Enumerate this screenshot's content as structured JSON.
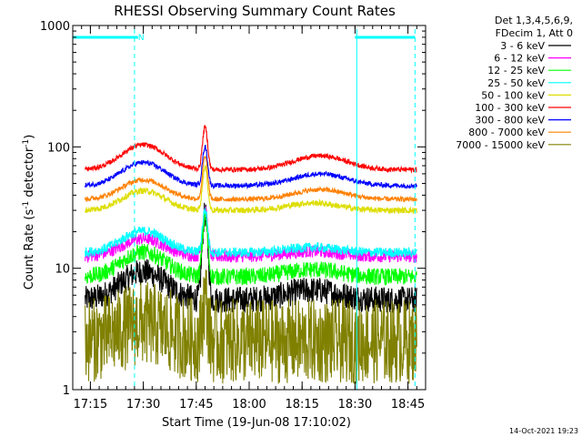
{
  "chart_data": {
    "type": "line",
    "title": "RHESSI Observing Summary Count Rates",
    "xlabel": "Start Time (19-Jun-08 17:10:02)",
    "ylabel_main": "Count Rate (s",
    "ylabel_sup1": "-1",
    "ylabel_mid": " detector",
    "ylabel_sup2": "-1",
    "ylabel_end": ")",
    "yscale": "log",
    "ylim": [
      1,
      1000
    ],
    "xlim_minutes": [
      0,
      100
    ],
    "x_ticks": [
      {
        "minute": 5,
        "label": "17:15"
      },
      {
        "minute": 20,
        "label": "17:30"
      },
      {
        "minute": 35,
        "label": "17:45"
      },
      {
        "minute": 50,
        "label": "18:00"
      },
      {
        "minute": 65,
        "label": "18:15"
      },
      {
        "minute": 80,
        "label": "18:30"
      },
      {
        "minute": 95,
        "label": "18:45"
      }
    ],
    "y_ticks": [
      {
        "value": 1,
        "label": "1"
      },
      {
        "value": 10,
        "label": "10"
      },
      {
        "value": 100,
        "label": "100"
      },
      {
        "value": 1000,
        "label": "1000"
      }
    ],
    "legend": {
      "placement": "top-right",
      "header1": "Det 1,3,4,5,6,9,",
      "header2": "FDecim 1, Att 0"
    },
    "series": [
      {
        "name": "3 - 6 keV",
        "color": "#000000",
        "peak": 28,
        "base": 5.5,
        "bumps": [
          [
            20,
            8,
            1.7
          ],
          [
            68,
            10,
            1.2
          ]
        ],
        "noise": 0.11
      },
      {
        "name": "6 - 12 keV",
        "color": "#ff00ff",
        "peak": 30,
        "base": 12.5,
        "bumps": [
          [
            20,
            8,
            1.4
          ],
          [
            68,
            10,
            1.1
          ]
        ],
        "noise": 0.05
      },
      {
        "name": "12 - 25 keV",
        "color": "#00ff00",
        "peak": 26,
        "base": 8.5,
        "bumps": [
          [
            20,
            8,
            1.6
          ],
          [
            68,
            10,
            1.15
          ]
        ],
        "noise": 0.07
      },
      {
        "name": "25 - 50 keV",
        "color": "#00ffff",
        "peak": 30,
        "base": 13.5,
        "bumps": [
          [
            20,
            8,
            1.5
          ],
          [
            68,
            10,
            1.1
          ]
        ],
        "noise": 0.04
      },
      {
        "name": "50 - 100 keV",
        "color": "#dddd00",
        "peak": 68,
        "base": 30,
        "bumps": [
          [
            20,
            8,
            1.45
          ],
          [
            68,
            10,
            1.15
          ]
        ],
        "noise": 0.025
      },
      {
        "name": "100 - 300 keV",
        "color": "#ff0000",
        "peak": 145,
        "base": 65,
        "bumps": [
          [
            20,
            8,
            1.6
          ],
          [
            70,
            10,
            1.3
          ]
        ],
        "noise": 0.02
      },
      {
        "name": "300 - 800 keV",
        "color": "#0000ff",
        "peak": 100,
        "base": 48,
        "bumps": [
          [
            20,
            8,
            1.55
          ],
          [
            70,
            10,
            1.25
          ]
        ],
        "noise": 0.02
      },
      {
        "name": "800 - 7000 keV",
        "color": "#ff8000",
        "peak": 82,
        "base": 37,
        "bumps": [
          [
            20,
            8,
            1.45
          ],
          [
            70,
            10,
            1.2
          ]
        ],
        "noise": 0.02
      },
      {
        "name": "7000 - 15000 keV",
        "color": "#808000",
        "peak": 5.5,
        "base": 2.5,
        "bumps": [
          [
            20,
            9,
            1.4
          ]
        ],
        "noise": 0.35
      }
    ],
    "flare_peak_minute": 37.5,
    "data_gaps_minutes": [
      [
        0,
        3.5
      ],
      [
        97.5,
        100
      ]
    ],
    "marker_text": "N",
    "footer_timestamp": "14-Oct-2021 19:23",
    "cyan_bars": [
      [
        0,
        18.5
      ],
      [
        80,
        97
      ]
    ],
    "dashed_lines_minutes": [
      17.5,
      97
    ],
    "solid_lines_minutes": [
      0,
      80.5
    ]
  }
}
